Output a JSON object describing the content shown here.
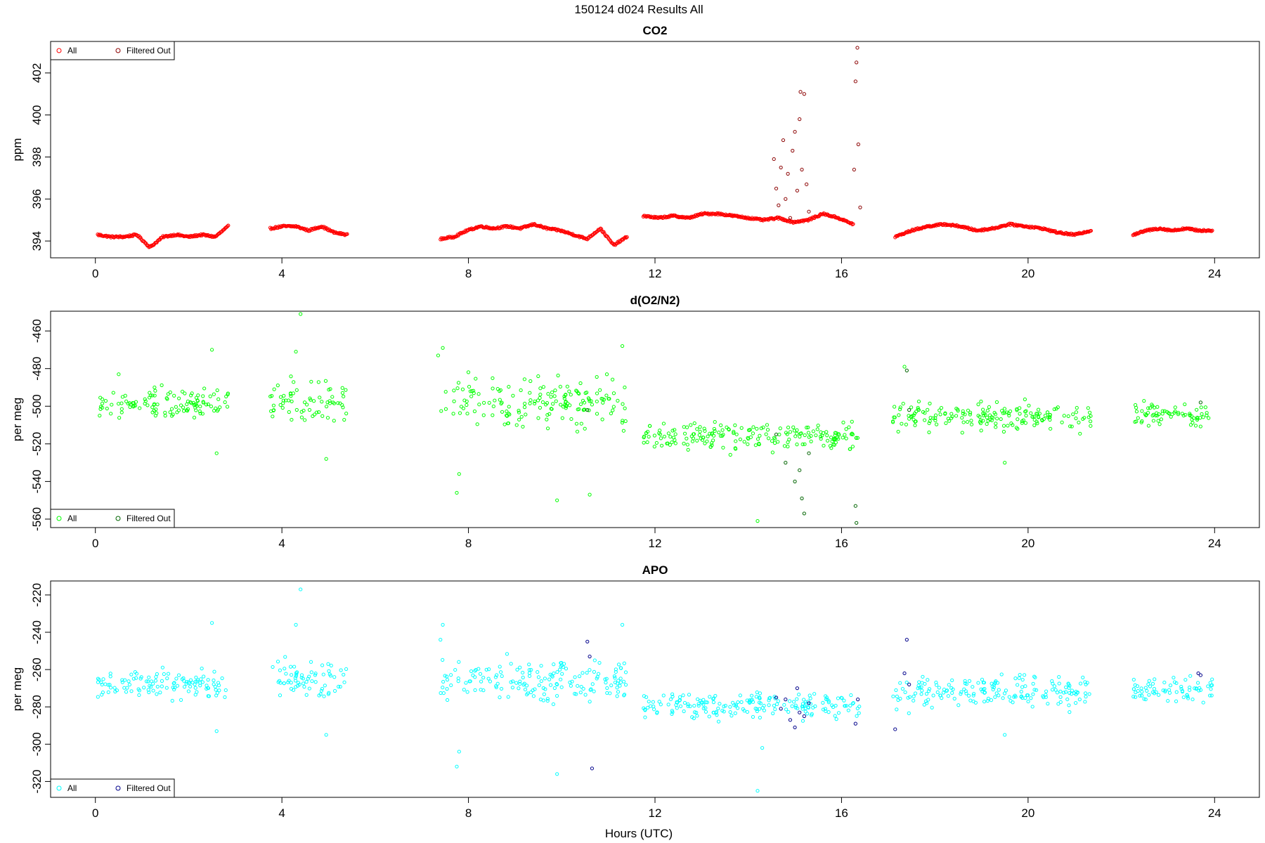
{
  "figure": {
    "title": "150124   d024   Results All",
    "xlabel": "Hours (UTC)"
  },
  "chart_data": [
    {
      "type": "scatter",
      "title": "CO2",
      "ylabel": "ppm",
      "xlabel": "",
      "xlim": [
        -0.96,
        24.96
      ],
      "ylim": [
        393.2,
        403.5
      ],
      "xticks": [
        0,
        4,
        8,
        12,
        16,
        20,
        24
      ],
      "yticks": [
        394,
        396,
        398,
        400,
        402
      ],
      "grid": false,
      "legend": {
        "placement": "top-left",
        "items": [
          "All",
          "Filtered Out"
        ]
      },
      "colors": {
        "all": "#ff0000",
        "filtered": "#8b0000"
      },
      "segments": [
        {
          "x0": 0.05,
          "x1": 2.85,
          "y": [
            394.3,
            394.2,
            394.2,
            394.3,
            393.7,
            394.2,
            394.3,
            394.2,
            394.3,
            394.2,
            394.7
          ]
        },
        {
          "x0": 3.75,
          "x1": 5.4,
          "y": [
            394.6,
            394.7,
            394.7,
            394.5,
            394.7,
            394.4,
            394.3
          ]
        },
        {
          "x0": 7.4,
          "x1": 11.4,
          "y": [
            394.1,
            394.2,
            394.5,
            394.7,
            394.6,
            394.7,
            394.6,
            394.8,
            394.6,
            394.5,
            394.3,
            394.1,
            394.6,
            393.8,
            394.2
          ]
        },
        {
          "x0": 11.75,
          "x1": 16.25,
          "y": [
            395.2,
            395.1,
            395.2,
            395.1,
            395.3,
            395.3,
            395.2,
            395.1,
            395.0,
            395.1,
            394.9,
            395.0,
            395.3,
            395.1,
            394.8
          ]
        },
        {
          "x0": 17.15,
          "x1": 21.35,
          "y": [
            394.2,
            394.5,
            394.7,
            394.8,
            394.7,
            394.5,
            394.6,
            394.8,
            394.7,
            394.6,
            394.4,
            394.3,
            394.5
          ]
        },
        {
          "x0": 22.25,
          "x1": 23.95,
          "y": [
            394.3,
            394.5,
            394.6,
            394.5,
            394.6,
            394.5,
            394.5
          ]
        }
      ],
      "filtered_out": [
        [
          14.55,
          397.9
        ],
        [
          14.6,
          396.5
        ],
        [
          14.65,
          395.7
        ],
        [
          14.7,
          397.5
        ],
        [
          14.75,
          398.8
        ],
        [
          14.8,
          396.0
        ],
        [
          14.85,
          397.2
        ],
        [
          14.9,
          395.1
        ],
        [
          14.95,
          398.3
        ],
        [
          15.0,
          399.2
        ],
        [
          15.05,
          396.4
        ],
        [
          15.1,
          399.8
        ],
        [
          15.12,
          401.1
        ],
        [
          15.15,
          397.4
        ],
        [
          15.2,
          401.0
        ],
        [
          15.25,
          396.7
        ],
        [
          15.3,
          395.4
        ],
        [
          16.27,
          397.4
        ],
        [
          16.3,
          401.6
        ],
        [
          16.32,
          402.5
        ],
        [
          16.34,
          403.2
        ],
        [
          16.36,
          398.6
        ],
        [
          16.4,
          395.6
        ]
      ]
    },
    {
      "type": "scatter",
      "title": "d(O2/N2)",
      "ylabel": "per meg",
      "xlabel": "",
      "xlim": [
        -0.96,
        24.96
      ],
      "ylim": [
        -564.5,
        -449.5
      ],
      "xticks": [
        0,
        4,
        8,
        12,
        16,
        20,
        24
      ],
      "yticks": [
        -460,
        -480,
        -500,
        -520,
        -540,
        -560
      ],
      "grid": false,
      "legend": {
        "placement": "bottom-left",
        "items": [
          "All",
          "Filtered Out"
        ]
      },
      "colors": {
        "all": "#00ff00",
        "filtered": "#006400"
      },
      "groups": [
        {
          "x0": 0.05,
          "x1": 2.85,
          "mean": -499,
          "spread": 7
        },
        {
          "x0": 3.75,
          "x1": 5.4,
          "mean": -497,
          "spread": 9
        },
        {
          "x0": 7.4,
          "x1": 11.4,
          "mean": -498,
          "spread": 10
        },
        {
          "x0": 11.75,
          "x1": 16.4,
          "mean": -516,
          "spread": 6
        },
        {
          "x0": 17.1,
          "x1": 21.35,
          "mean": -505,
          "spread": 6
        },
        {
          "x0": 22.25,
          "x1": 23.95,
          "mean": -504,
          "spread": 5
        }
      ],
      "outliers": [
        [
          0.5,
          -483
        ],
        [
          2.5,
          -470
        ],
        [
          2.6,
          -525
        ],
        [
          4.4,
          -451
        ],
        [
          4.3,
          -471
        ],
        [
          4.95,
          -528
        ],
        [
          7.35,
          -473
        ],
        [
          7.45,
          -469
        ],
        [
          7.8,
          -536
        ],
        [
          7.75,
          -546
        ],
        [
          9.9,
          -550
        ],
        [
          10.6,
          -547
        ],
        [
          11.3,
          -468
        ],
        [
          14.2,
          -561
        ],
        [
          17.35,
          -479
        ],
        [
          19.5,
          -530
        ]
      ],
      "filtered_out": [
        [
          10.55,
          -502
        ],
        [
          14.6,
          -515
        ],
        [
          14.8,
          -530
        ],
        [
          15.0,
          -540
        ],
        [
          15.1,
          -534
        ],
        [
          15.15,
          -549
        ],
        [
          15.2,
          -557
        ],
        [
          15.3,
          -525
        ],
        [
          16.3,
          -553
        ],
        [
          16.32,
          -562
        ],
        [
          17.4,
          -481
        ],
        [
          17.45,
          -502
        ],
        [
          23.7,
          -498
        ]
      ]
    },
    {
      "type": "scatter",
      "title": "APO",
      "ylabel": "per meg",
      "xlabel": "",
      "xlim": [
        -0.96,
        24.96
      ],
      "ylim": [
        -328.5,
        -212.5
      ],
      "xticks": [
        0,
        4,
        8,
        12,
        16,
        20,
        24
      ],
      "yticks": [
        -220,
        -240,
        -260,
        -280,
        -300,
        -320
      ],
      "grid": false,
      "legend": {
        "placement": "bottom-left",
        "items": [
          "All",
          "Filtered Out"
        ]
      },
      "colors": {
        "all": "#00ffff",
        "filtered": "#00008b"
      },
      "groups": [
        {
          "x0": 0.05,
          "x1": 2.85,
          "mean": -268,
          "spread": 6
        },
        {
          "x0": 3.75,
          "x1": 5.4,
          "mean": -265,
          "spread": 9
        },
        {
          "x0": 7.4,
          "x1": 11.4,
          "mean": -266,
          "spread": 10
        },
        {
          "x0": 11.75,
          "x1": 16.4,
          "mean": -279,
          "spread": 6
        },
        {
          "x0": 17.1,
          "x1": 21.35,
          "mean": -272,
          "spread": 7
        },
        {
          "x0": 22.25,
          "x1": 23.95,
          "mean": -271,
          "spread": 5
        }
      ],
      "outliers": [
        [
          2.5,
          -235
        ],
        [
          2.6,
          -293
        ],
        [
          4.4,
          -217
        ],
        [
          4.3,
          -236
        ],
        [
          4.95,
          -295
        ],
        [
          7.4,
          -244
        ],
        [
          7.45,
          -236
        ],
        [
          7.8,
          -304
        ],
        [
          7.75,
          -312
        ],
        [
          9.9,
          -316
        ],
        [
          11.3,
          -236
        ],
        [
          14.2,
          -325
        ],
        [
          14.3,
          -302
        ],
        [
          19.5,
          -295
        ]
      ],
      "filtered_out": [
        [
          10.55,
          -245
        ],
        [
          10.6,
          -253
        ],
        [
          10.65,
          -313
        ],
        [
          14.6,
          -275
        ],
        [
          14.7,
          -281
        ],
        [
          14.8,
          -276
        ],
        [
          14.9,
          -287
        ],
        [
          15.0,
          -291
        ],
        [
          15.05,
          -270
        ],
        [
          15.1,
          -283
        ],
        [
          15.2,
          -285
        ],
        [
          15.3,
          -278
        ],
        [
          16.3,
          -289
        ],
        [
          16.35,
          -276
        ],
        [
          17.15,
          -292
        ],
        [
          17.35,
          -262
        ],
        [
          17.4,
          -244
        ],
        [
          17.45,
          -268
        ],
        [
          23.65,
          -262
        ],
        [
          23.7,
          -263
        ]
      ]
    }
  ]
}
